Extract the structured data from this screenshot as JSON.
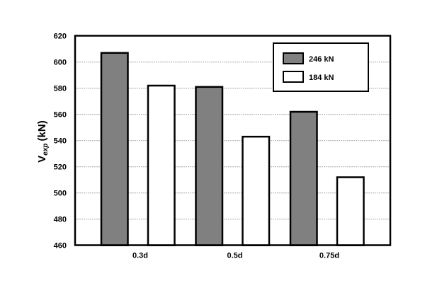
{
  "chart_data": {
    "type": "bar",
    "categories": [
      "0.3d",
      "0.5d",
      "0.75d"
    ],
    "series": [
      {
        "name": "246 kN",
        "values": [
          607,
          581,
          562
        ],
        "color": "#808080"
      },
      {
        "name": "184 kN",
        "values": [
          582,
          543,
          512
        ],
        "color": "#ffffff"
      }
    ],
    "ylabel_main": "V",
    "ylabel_sub": "exp",
    "ylabel_unit": "(kN)",
    "ylim": [
      460,
      620
    ],
    "yticks": [
      460,
      480,
      500,
      520,
      540,
      560,
      580,
      600,
      620
    ],
    "grid": true,
    "legend": "top-right"
  }
}
